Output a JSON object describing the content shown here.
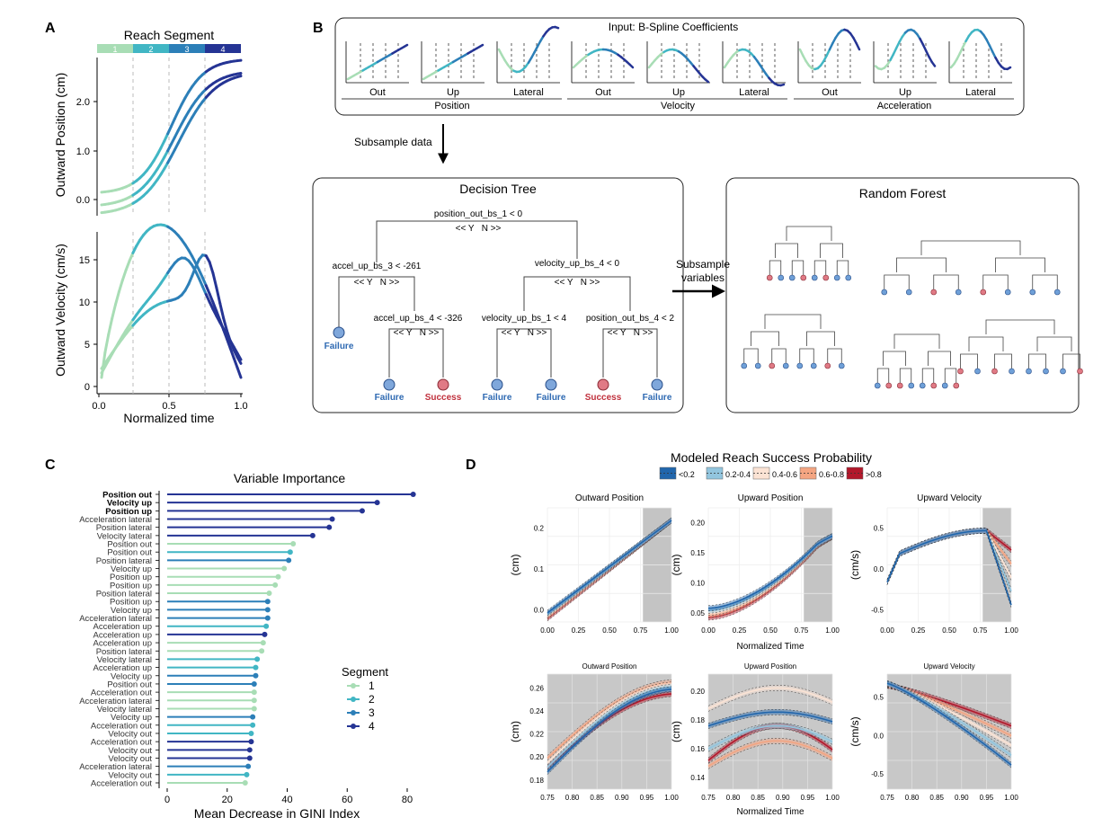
{
  "panels": {
    "a": {
      "label": "A",
      "segment_title": "Reach Segment",
      "segments": [
        "1",
        "2",
        "3",
        "4"
      ],
      "segment_colors": [
        "#a8ddb5",
        "#41b6c4",
        "#2c7fb8",
        "#253494"
      ],
      "top": {
        "ylabel": "Outward Position (cm)",
        "yticks": [
          "0.0",
          "1.0",
          "2.0"
        ]
      },
      "bottom": {
        "ylabel": "Outward Velocity (cm/s)",
        "yticks": [
          "0",
          "5",
          "10",
          "15"
        ],
        "xticks": [
          "0.0",
          "0.5",
          "1.0"
        ],
        "xlabel": "Normalized time"
      }
    },
    "b": {
      "label": "B",
      "input_title": "Input: B-Spline Coefficients",
      "input_groups": [
        {
          "name": "Position",
          "items": [
            "Out",
            "Up",
            "Lateral"
          ]
        },
        {
          "name": "Velocity",
          "items": [
            "Out",
            "Up",
            "Lateral"
          ]
        },
        {
          "name": "Acceleration",
          "items": [
            "Out",
            "Up",
            "Lateral"
          ]
        }
      ],
      "subsample_data": "Subsample data",
      "subsample_variables": [
        "Subsample",
        "variables"
      ],
      "tree_title": "Decision Tree",
      "forest_title": "Random Forest",
      "yn": "<< Y   N >>",
      "nodes": {
        "root": "position_out_bs_1 < 0",
        "l1": "accel_up_bs_3 < -261",
        "r1": "velocity_up_bs_4 < 0",
        "l2": "accel_up_bs_4 < -326",
        "r2a": "velocity_up_bs_1 < 4",
        "r2b": "position_out_bs_4 < 2"
      },
      "leaves": [
        "Failure",
        "Failure",
        "Success",
        "Failure",
        "Failure",
        "Success",
        "Failure"
      ]
    },
    "c": {
      "label": "C",
      "title": "Variable Importance",
      "xlabel": "Mean Decrease in GINI Index",
      "xticks": [
        "0",
        "20",
        "40",
        "60",
        "80"
      ],
      "legend_title": "Segment",
      "legend_items": [
        "1",
        "2",
        "3",
        "4"
      ]
    },
    "d": {
      "label": "D",
      "legend_title": "Modeled Reach Success Probability",
      "legend_items": [
        "<0.2",
        "0.2-0.4",
        "0.4-0.6",
        "0.6-0.8",
        ">0.8"
      ],
      "legend_colors": [
        "#2166ac",
        "#92c5de",
        "#fbe3d4",
        "#f4a582",
        "#b2182b"
      ],
      "top_titles": [
        "Outward Position",
        "Upward Position",
        "Upward Velocity"
      ],
      "bottom_titles": [
        "Outward Position",
        "Upward Position",
        "Upward Velocity"
      ],
      "xlabel": "Normalized Time",
      "ylabel_cm": "(cm)",
      "ylabel_cms": "(cm/s)",
      "top_xticks": [
        "0.00",
        "0.25",
        "0.50",
        "0.75",
        "1.00"
      ],
      "bottom_xticks": [
        "0.75",
        "0.80",
        "0.85",
        "0.90",
        "0.95",
        "1.00"
      ],
      "top_yticks": [
        [
          "0.0",
          "0.1",
          "0.2"
        ],
        [
          "0.05",
          "0.10",
          "0.15",
          "0.20"
        ],
        [
          "-0.5",
          "0.0",
          "0.5"
        ]
      ],
      "bottom_yticks": [
        [
          "0.18",
          "0.20",
          "0.22",
          "0.24",
          "0.26"
        ],
        [
          "0.14",
          "0.16",
          "0.18",
          "0.20"
        ],
        [
          "-0.5",
          "0.0",
          "0.5"
        ]
      ]
    }
  },
  "chart_data": [
    {
      "type": "bar",
      "title": "Variable Importance",
      "xlabel": "Mean Decrease in GINI Index",
      "xlim": [
        0,
        85
      ],
      "categories": [
        "Position out",
        "Velocity up",
        "Position up",
        "Acceleration lateral",
        "Position lateral",
        "Velocity lateral",
        "Position out",
        "Position out",
        "Position lateral",
        "Velocity up",
        "Position up",
        "Position up",
        "Position lateral",
        "Position up",
        "Velocity up",
        "Acceleration lateral",
        "Acceleration up",
        "Acceleration up",
        "Acceleration up",
        "Position lateral",
        "Velocity lateral",
        "Acceleration up",
        "Velocity up",
        "Position out",
        "Acceleration out",
        "Acceleration lateral",
        "Velocity lateral",
        "Velocity up",
        "Acceleration out",
        "Velocity out",
        "Acceleration out",
        "Velocity out",
        "Velocity out",
        "Acceleration lateral",
        "Velocity out",
        "Acceleration out"
      ],
      "values": [
        82,
        70,
        65,
        55,
        54,
        48.5,
        42,
        41,
        40.5,
        39,
        37,
        36,
        34,
        33.5,
        33.5,
        33.5,
        33,
        32.5,
        32,
        31.5,
        30,
        29.5,
        29.5,
        29,
        29,
        29,
        29,
        28.5,
        28.5,
        28,
        28,
        27.5,
        27.5,
        27,
        26.5,
        26
      ],
      "segment": [
        4,
        4,
        4,
        4,
        4,
        4,
        1,
        2,
        3,
        1,
        1,
        1,
        1,
        3,
        3,
        3,
        2,
        4,
        1,
        1,
        2,
        2,
        3,
        3,
        1,
        1,
        1,
        3,
        2,
        2,
        4,
        4,
        4,
        3,
        2,
        1
      ],
      "bold": [
        true,
        true,
        true,
        false,
        false,
        false,
        false,
        false,
        false,
        false,
        false,
        false,
        false,
        false,
        false,
        false,
        false,
        false,
        false,
        false,
        false,
        false,
        false,
        false,
        false,
        false,
        false,
        false,
        false,
        false,
        false,
        false,
        false,
        false,
        false,
        false
      ]
    }
  ]
}
